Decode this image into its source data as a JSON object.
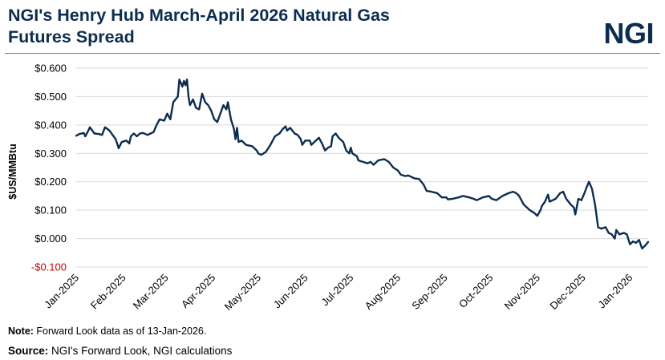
{
  "header": {
    "title_line1": "NGI's Henry Hub March-April 2026 Natural Gas",
    "title_line2": "Futures Spread",
    "logo": "NGI"
  },
  "footer": {
    "note_label": "Note:",
    "note_text": " Forward Look data as of 13-Jan-2026.",
    "source_label": "Source:",
    "source_text": " NGI's Forward Look, NGI calculations"
  },
  "colors": {
    "line": "#0d2d4f",
    "negative_tick": "#cc0000",
    "grid": "#d9d9d9"
  },
  "chart_data": {
    "type": "line",
    "title": "NGI's Henry Hub March-April 2026 Natural Gas Futures Spread",
    "ylabel": "$US/MMBtu",
    "xlabel": "",
    "ylim": [
      -0.1,
      0.6
    ],
    "yticks": [
      0.6,
      0.5,
      0.4,
      0.3,
      0.2,
      0.1,
      0.0,
      -0.1
    ],
    "ytick_labels": [
      "$0.600",
      "$0.500",
      "$0.400",
      "$0.300",
      "$0.200",
      "$0.100",
      "$0.000",
      "-$0.100"
    ],
    "xlim": [
      "2025-01-01",
      "2026-01-13"
    ],
    "xtick_labels": [
      "Jan-2025",
      "Feb-2025",
      "Mar-2025",
      "Apr-2025",
      "May-2025",
      "Jun-2025",
      "Jul-2025",
      "Aug-2025",
      "Sep-2025",
      "Oct-2025",
      "Nov-2025",
      "Dec-2025",
      "Jan-2026"
    ],
    "xtick_dates": [
      "2025-01-01",
      "2025-02-01",
      "2025-03-01",
      "2025-04-01",
      "2025-05-01",
      "2025-06-01",
      "2025-07-01",
      "2025-08-01",
      "2025-09-01",
      "2025-10-01",
      "2025-11-01",
      "2025-12-01",
      "2026-01-01"
    ],
    "grid": true,
    "series": [
      {
        "points": [
          [
            "2025-01-01",
            0.362
          ],
          [
            "2025-01-03",
            0.368
          ],
          [
            "2025-01-06",
            0.372
          ],
          [
            "2025-01-07",
            0.36
          ],
          [
            "2025-01-09",
            0.38
          ],
          [
            "2025-01-10",
            0.392
          ],
          [
            "2025-01-13",
            0.37
          ],
          [
            "2025-01-16",
            0.368
          ],
          [
            "2025-01-18",
            0.365
          ],
          [
            "2025-01-20",
            0.392
          ],
          [
            "2025-01-23",
            0.38
          ],
          [
            "2025-01-25",
            0.365
          ],
          [
            "2025-01-27",
            0.35
          ],
          [
            "2025-01-29",
            0.318
          ],
          [
            "2025-01-31",
            0.34
          ],
          [
            "2025-02-03",
            0.345
          ],
          [
            "2025-02-05",
            0.335
          ],
          [
            "2025-02-06",
            0.36
          ],
          [
            "2025-02-08",
            0.37
          ],
          [
            "2025-02-10",
            0.36
          ],
          [
            "2025-02-12",
            0.37
          ],
          [
            "2025-02-14",
            0.372
          ],
          [
            "2025-02-17",
            0.365
          ],
          [
            "2025-02-19",
            0.37
          ],
          [
            "2025-02-21",
            0.375
          ],
          [
            "2025-02-23",
            0.4
          ],
          [
            "2025-02-25",
            0.42
          ],
          [
            "2025-02-28",
            0.415
          ],
          [
            "2025-03-02",
            0.44
          ],
          [
            "2025-03-04",
            0.42
          ],
          [
            "2025-03-06",
            0.48
          ],
          [
            "2025-03-09",
            0.5
          ],
          [
            "2025-03-10",
            0.56
          ],
          [
            "2025-03-12",
            0.535
          ],
          [
            "2025-03-13",
            0.555
          ],
          [
            "2025-03-14",
            0.54
          ],
          [
            "2025-03-15",
            0.56
          ],
          [
            "2025-03-16",
            0.5
          ],
          [
            "2025-03-17",
            0.47
          ],
          [
            "2025-03-19",
            0.49
          ],
          [
            "2025-03-21",
            0.46
          ],
          [
            "2025-03-23",
            0.455
          ],
          [
            "2025-03-25",
            0.51
          ],
          [
            "2025-03-27",
            0.48
          ],
          [
            "2025-03-29",
            0.47
          ],
          [
            "2025-03-31",
            0.45
          ],
          [
            "2025-04-02",
            0.42
          ],
          [
            "2025-04-04",
            0.41
          ],
          [
            "2025-04-06",
            0.44
          ],
          [
            "2025-04-08",
            0.47
          ],
          [
            "2025-04-10",
            0.455
          ],
          [
            "2025-04-11",
            0.48
          ],
          [
            "2025-04-13",
            0.42
          ],
          [
            "2025-04-15",
            0.385
          ],
          [
            "2025-04-16",
            0.35
          ],
          [
            "2025-04-17",
            0.39
          ],
          [
            "2025-04-18",
            0.34
          ],
          [
            "2025-04-20",
            0.345
          ],
          [
            "2025-04-23",
            0.33
          ],
          [
            "2025-04-27",
            0.325
          ],
          [
            "2025-04-30",
            0.31
          ],
          [
            "2025-05-01",
            0.3
          ],
          [
            "2025-05-03",
            0.295
          ],
          [
            "2025-05-06",
            0.305
          ],
          [
            "2025-05-09",
            0.33
          ],
          [
            "2025-05-12",
            0.36
          ],
          [
            "2025-05-15",
            0.37
          ],
          [
            "2025-05-17",
            0.385
          ],
          [
            "2025-05-19",
            0.395
          ],
          [
            "2025-05-20",
            0.38
          ],
          [
            "2025-05-22",
            0.39
          ],
          [
            "2025-05-25",
            0.37
          ],
          [
            "2025-05-27",
            0.365
          ],
          [
            "2025-05-29",
            0.35
          ],
          [
            "2025-05-30",
            0.33
          ],
          [
            "2025-06-01",
            0.345
          ],
          [
            "2025-06-04",
            0.345
          ],
          [
            "2025-06-05",
            0.33
          ],
          [
            "2025-06-08",
            0.345
          ],
          [
            "2025-06-10",
            0.355
          ],
          [
            "2025-06-12",
            0.335
          ],
          [
            "2025-06-14",
            0.31
          ],
          [
            "2025-06-16",
            0.32
          ],
          [
            "2025-06-18",
            0.325
          ],
          [
            "2025-06-19",
            0.36
          ],
          [
            "2025-06-21",
            0.37
          ],
          [
            "2025-06-23",
            0.355
          ],
          [
            "2025-06-26",
            0.34
          ],
          [
            "2025-06-28",
            0.31
          ],
          [
            "2025-06-30",
            0.3
          ],
          [
            "2025-07-01",
            0.32
          ],
          [
            "2025-07-02",
            0.3
          ],
          [
            "2025-07-05",
            0.29
          ],
          [
            "2025-07-06",
            0.275
          ],
          [
            "2025-07-09",
            0.27
          ],
          [
            "2025-07-12",
            0.265
          ],
          [
            "2025-07-14",
            0.27
          ],
          [
            "2025-07-16",
            0.26
          ],
          [
            "2025-07-19",
            0.275
          ],
          [
            "2025-07-23",
            0.28
          ],
          [
            "2025-07-26",
            0.27
          ],
          [
            "2025-07-29",
            0.25
          ],
          [
            "2025-08-01",
            0.24
          ],
          [
            "2025-08-03",
            0.225
          ],
          [
            "2025-08-06",
            0.22
          ],
          [
            "2025-08-08",
            0.222
          ],
          [
            "2025-08-12",
            0.212
          ],
          [
            "2025-08-15",
            0.21
          ],
          [
            "2025-08-18",
            0.19
          ],
          [
            "2025-08-20",
            0.168
          ],
          [
            "2025-08-23",
            0.165
          ],
          [
            "2025-08-27",
            0.16
          ],
          [
            "2025-08-30",
            0.145
          ],
          [
            "2025-09-02",
            0.145
          ],
          [
            "2025-09-03",
            0.138
          ],
          [
            "2025-09-06",
            0.14
          ],
          [
            "2025-09-10",
            0.145
          ],
          [
            "2025-09-13",
            0.15
          ],
          [
            "2025-09-17",
            0.145
          ],
          [
            "2025-09-20",
            0.14
          ],
          [
            "2025-09-22",
            0.135
          ],
          [
            "2025-09-26",
            0.145
          ],
          [
            "2025-09-30",
            0.15
          ],
          [
            "2025-10-02",
            0.14
          ],
          [
            "2025-10-05",
            0.135
          ],
          [
            "2025-10-09",
            0.15
          ],
          [
            "2025-10-13",
            0.16
          ],
          [
            "2025-10-16",
            0.165
          ],
          [
            "2025-10-18",
            0.16
          ],
          [
            "2025-10-20",
            0.15
          ],
          [
            "2025-10-23",
            0.12
          ],
          [
            "2025-10-27",
            0.1
          ],
          [
            "2025-10-30",
            0.09
          ],
          [
            "2025-11-01",
            0.08
          ],
          [
            "2025-11-03",
            0.1
          ],
          [
            "2025-11-04",
            0.115
          ],
          [
            "2025-11-06",
            0.13
          ],
          [
            "2025-11-08",
            0.155
          ],
          [
            "2025-11-09",
            0.13
          ],
          [
            "2025-11-13",
            0.14
          ],
          [
            "2025-11-16",
            0.16
          ],
          [
            "2025-11-18",
            0.165
          ],
          [
            "2025-11-20",
            0.14
          ],
          [
            "2025-11-23",
            0.12
          ],
          [
            "2025-11-25",
            0.11
          ],
          [
            "2025-11-26",
            0.085
          ],
          [
            "2025-11-28",
            0.14
          ],
          [
            "2025-11-30",
            0.135
          ],
          [
            "2025-12-02",
            0.16
          ],
          [
            "2025-12-03",
            0.175
          ],
          [
            "2025-12-05",
            0.2
          ],
          [
            "2025-12-07",
            0.175
          ],
          [
            "2025-12-09",
            0.12
          ],
          [
            "2025-12-10",
            0.08
          ],
          [
            "2025-12-11",
            0.04
          ],
          [
            "2025-12-13",
            0.035
          ],
          [
            "2025-12-16",
            0.04
          ],
          [
            "2025-12-18",
            0.02
          ],
          [
            "2025-12-20",
            0.015
          ],
          [
            "2025-12-22",
            0.0
          ],
          [
            "2025-12-23",
            0.03
          ],
          [
            "2025-12-25",
            0.015
          ],
          [
            "2025-12-28",
            0.02
          ],
          [
            "2025-12-30",
            0.015
          ],
          [
            "2026-01-01",
            -0.02
          ],
          [
            "2026-01-03",
            -0.01
          ],
          [
            "2026-01-05",
            -0.015
          ],
          [
            "2026-01-07",
            -0.005
          ],
          [
            "2026-01-09",
            -0.035
          ],
          [
            "2026-01-11",
            -0.025
          ],
          [
            "2026-01-13",
            -0.012
          ]
        ]
      }
    ]
  }
}
